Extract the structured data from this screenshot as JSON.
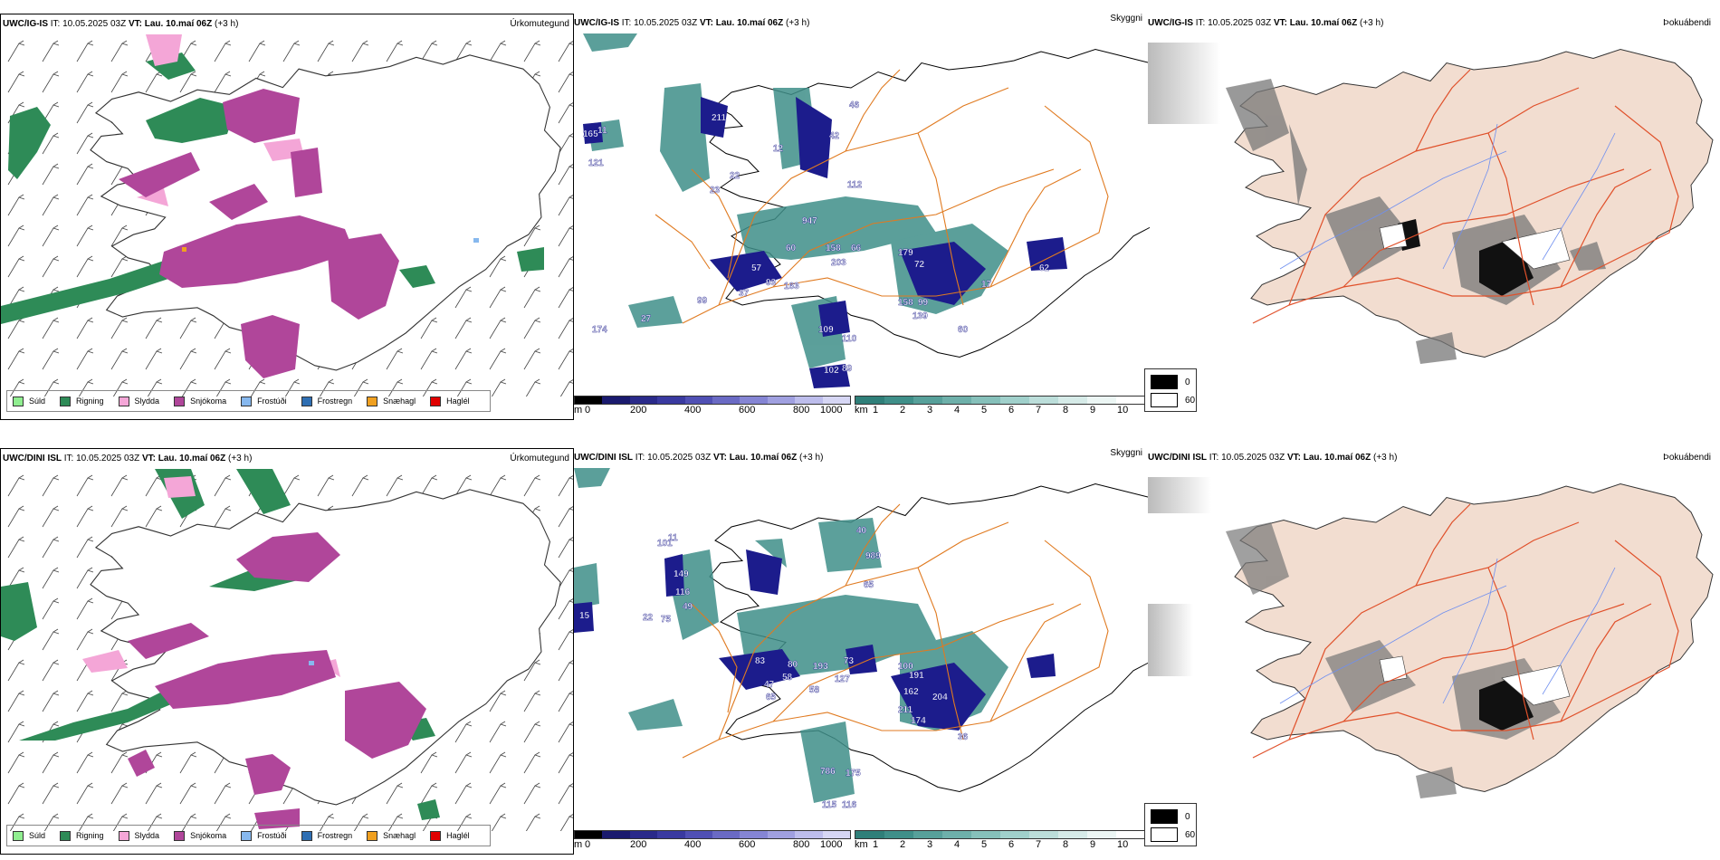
{
  "rows": [
    {
      "model": "UWC/IG-IS",
      "it_label": "IT:",
      "it_value": "10.05.2025 03Z",
      "vt_label": "VT:",
      "vt_value": "Lau. 10.maí 06Z",
      "offset": "(+3 h)"
    },
    {
      "model": "UWC/DINI ISL",
      "it_label": "IT:",
      "it_value": "10.05.2025 03Z",
      "vt_label": "VT:",
      "vt_value": "Lau. 10.maí 06Z",
      "offset": "(+3 h)"
    }
  ],
  "products": {
    "precip_type": "Úrkomutegund",
    "visibility": "Skyggni",
    "dewpoint_depression": "Þokuábendi"
  },
  "precip_legend": [
    {
      "label": "Súld",
      "color": "#90ee90"
    },
    {
      "label": "Rigning",
      "color": "#2e8b57"
    },
    {
      "label": "Slydda",
      "color": "#f4a6d7"
    },
    {
      "label": "Snjókoma",
      "color": "#b0469a"
    },
    {
      "label": "Frostúði",
      "color": "#87b8ee"
    },
    {
      "label": "Frostregn",
      "color": "#2f6fb3"
    },
    {
      "label": "Snæhagl",
      "color": "#f0a020"
    },
    {
      "label": "Haglél",
      "color": "#e00000"
    }
  ],
  "vis_scale_m": {
    "unit": "m",
    "ticks": [
      "0",
      "200",
      "400",
      "600",
      "800",
      "1000"
    ]
  },
  "vis_scale_km": {
    "unit": "km",
    "ticks": [
      "1",
      "2",
      "3",
      "4",
      "5",
      "6",
      "7",
      "8",
      "9",
      "10"
    ]
  },
  "cloud_legend": [
    {
      "label": "0"
    },
    {
      "label": "60"
    }
  ],
  "vis_labels": {
    "top": [
      "165",
      "11",
      "121",
      "211",
      "46",
      "23",
      "22",
      "42",
      "12",
      "112",
      "947",
      "60",
      "158",
      "66",
      "179",
      "72",
      "203",
      "57",
      "93",
      "163",
      "99",
      "37",
      "158",
      "99",
      "139",
      "62",
      "17",
      "60",
      "109",
      "110",
      "102",
      "89",
      "27",
      "174"
    ],
    "bottom": [
      "15",
      "11",
      "22",
      "75",
      "49",
      "116",
      "149",
      "101",
      "40",
      "989",
      "65",
      "83",
      "80",
      "193",
      "73",
      "58",
      "47",
      "58",
      "65",
      "127",
      "100",
      "191",
      "162",
      "204",
      "211",
      "174",
      "36",
      "786",
      "175",
      "115",
      "116"
    ]
  },
  "colors": {
    "rain": "#2e8b57",
    "snow": "#b0469a",
    "sleet": "#f4a6d7",
    "vis_dark": "#1c1c8c",
    "vis_teal": "#3f8f89",
    "roads": "#e07a20",
    "land_beige": "#f2ddd0",
    "coast": "#000000",
    "rivers": "#6f8fef"
  }
}
